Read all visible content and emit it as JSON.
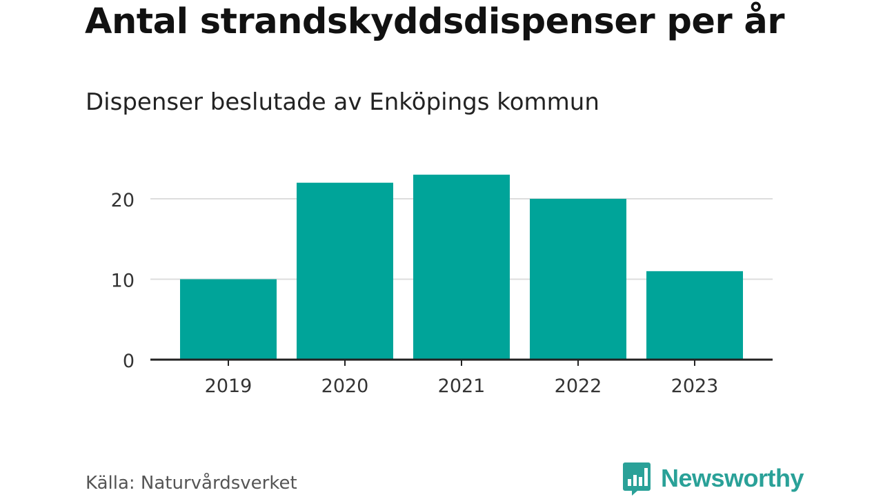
{
  "header": {
    "title": "Antal strandskyddsdispenser per år",
    "subtitle": "Dispenser beslutade av Enköpings kommun"
  },
  "footer": {
    "source": "Källa: Naturvårdsverket",
    "brand": "Newsworthy",
    "brand_icon": "newsworthy-logo-icon"
  },
  "colors": {
    "bar": "#00a499",
    "grid": "#dddddd",
    "axis": "#222222",
    "brand": "#2aa198"
  },
  "chart_data": {
    "type": "bar",
    "title": "Antal strandskyddsdispenser per år",
    "subtitle": "Dispenser beslutade av Enköpings kommun",
    "categories": [
      "2019",
      "2020",
      "2021",
      "2022",
      "2023"
    ],
    "values": [
      10,
      22,
      23,
      20,
      11
    ],
    "ylim": [
      0,
      23
    ],
    "yticks": [
      0,
      10,
      20
    ],
    "xlabel": "",
    "ylabel": "",
    "grid": true,
    "legend": "none"
  }
}
